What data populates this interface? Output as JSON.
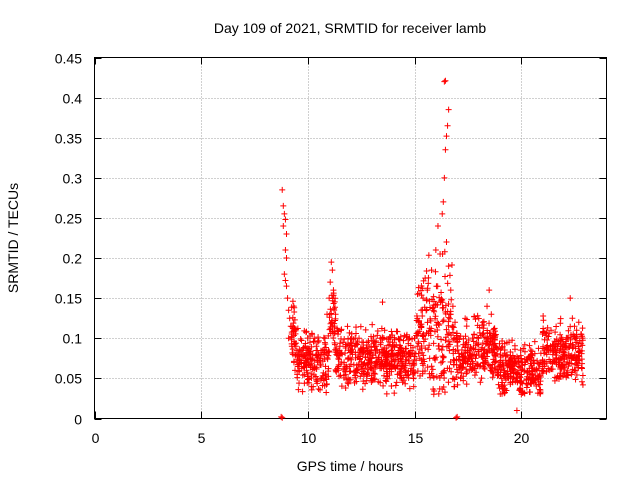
{
  "chart_data": {
    "type": "scatter",
    "title": "Day 109 of 2021, SRMTID for receiver lamb",
    "xlabel": "GPS time / hours",
    "ylabel": "SRMTID / TECUs",
    "xlim": [
      0,
      24
    ],
    "ylim": [
      0,
      0.45
    ],
    "xticks": [
      0,
      5,
      10,
      15,
      20
    ],
    "yticks": [
      0,
      0.05,
      0.1,
      0.15,
      0.2,
      0.25,
      0.3,
      0.35,
      0.4,
      0.45
    ],
    "xtick_labels": [
      "0",
      "5",
      "10",
      "15",
      "20"
    ],
    "ytick_labels": [
      "0",
      "0.05",
      "0.1",
      "0.15",
      "0.2",
      "0.25",
      "0.3",
      "0.35",
      "0.4",
      "0.45"
    ],
    "grid": true,
    "marker": "+",
    "color": "#ff0000",
    "series": [
      {
        "name": "SRMTID",
        "points": [
          [
            8.75,
            0.002
          ],
          [
            8.8,
            0.001
          ],
          [
            16.95,
            0.001
          ],
          [
            17.0,
            0.002
          ],
          [
            8.8,
            0.285
          ],
          [
            8.85,
            0.265
          ],
          [
            8.9,
            0.255
          ],
          [
            8.95,
            0.248
          ],
          [
            8.85,
            0.24
          ],
          [
            9.0,
            0.23
          ],
          [
            8.95,
            0.21
          ],
          [
            9.0,
            0.2
          ],
          [
            8.9,
            0.18
          ],
          [
            8.95,
            0.172
          ],
          [
            9.0,
            0.165
          ],
          [
            9.05,
            0.15
          ],
          [
            9.1,
            0.135
          ],
          [
            9.15,
            0.125
          ],
          [
            9.2,
            0.115
          ],
          [
            9.1,
            0.1
          ],
          [
            9.25,
            0.09
          ],
          [
            9.3,
            0.08
          ],
          [
            9.35,
            0.07
          ],
          [
            9.4,
            0.06
          ],
          [
            9.5,
            0.055
          ],
          [
            9.6,
            0.06
          ],
          [
            9.7,
            0.07
          ],
          [
            9.8,
            0.065
          ],
          [
            9.9,
            0.075
          ],
          [
            10.0,
            0.085
          ],
          [
            10.1,
            0.095
          ],
          [
            10.2,
            0.105
          ],
          [
            10.3,
            0.1
          ],
          [
            10.4,
            0.09
          ],
          [
            10.5,
            0.08
          ],
          [
            10.6,
            0.075
          ],
          [
            10.7,
            0.085
          ],
          [
            10.8,
            0.1
          ],
          [
            10.9,
            0.13
          ],
          [
            11.0,
            0.15
          ],
          [
            11.05,
            0.17
          ],
          [
            11.1,
            0.195
          ],
          [
            11.15,
            0.185
          ],
          [
            11.2,
            0.16
          ],
          [
            11.3,
            0.13
          ],
          [
            11.4,
            0.11
          ],
          [
            11.5,
            0.09
          ],
          [
            11.6,
            0.08
          ],
          [
            11.7,
            0.07
          ],
          [
            11.8,
            0.065
          ],
          [
            11.9,
            0.075
          ],
          [
            12.0,
            0.085
          ],
          [
            12.2,
            0.09
          ],
          [
            12.4,
            0.1
          ],
          [
            12.6,
            0.095
          ],
          [
            12.8,
            0.08
          ],
          [
            13.0,
            0.075
          ],
          [
            13.2,
            0.09
          ],
          [
            13.4,
            0.1
          ],
          [
            13.5,
            0.145
          ],
          [
            13.6,
            0.11
          ],
          [
            13.8,
            0.08
          ],
          [
            14.0,
            0.065
          ],
          [
            14.2,
            0.055
          ],
          [
            14.4,
            0.05
          ],
          [
            14.6,
            0.06
          ],
          [
            14.8,
            0.08
          ],
          [
            15.0,
            0.1
          ],
          [
            15.2,
            0.12
          ],
          [
            15.4,
            0.15
          ],
          [
            15.5,
            0.175
          ],
          [
            15.6,
            0.16
          ],
          [
            15.8,
            0.185
          ],
          [
            16.0,
            0.21
          ],
          [
            16.1,
            0.24
          ],
          [
            16.2,
            0.205
          ],
          [
            16.3,
            0.255
          ],
          [
            16.35,
            0.27
          ],
          [
            16.4,
            0.3
          ],
          [
            16.45,
            0.335
          ],
          [
            16.5,
            0.352
          ],
          [
            16.55,
            0.365
          ],
          [
            16.6,
            0.385
          ],
          [
            16.4,
            0.42
          ],
          [
            16.45,
            0.421
          ],
          [
            16.5,
            0.22
          ],
          [
            16.6,
            0.19
          ],
          [
            16.7,
            0.16
          ],
          [
            16.8,
            0.14
          ],
          [
            16.9,
            0.12
          ],
          [
            17.0,
            0.1
          ],
          [
            17.2,
            0.08
          ],
          [
            17.4,
            0.07
          ],
          [
            17.6,
            0.065
          ],
          [
            17.8,
            0.08
          ],
          [
            18.0,
            0.1
          ],
          [
            18.2,
            0.12
          ],
          [
            18.4,
            0.14
          ],
          [
            18.5,
            0.16
          ],
          [
            18.6,
            0.13
          ],
          [
            18.8,
            0.09
          ],
          [
            19.0,
            0.07
          ],
          [
            19.2,
            0.06
          ],
          [
            19.4,
            0.05
          ],
          [
            19.6,
            0.045
          ],
          [
            19.8,
            0.01
          ],
          [
            20.0,
            0.06
          ],
          [
            20.2,
            0.07
          ],
          [
            20.4,
            0.055
          ],
          [
            20.6,
            0.045
          ],
          [
            20.8,
            0.05
          ],
          [
            21.0,
            0.06
          ],
          [
            21.2,
            0.08
          ],
          [
            21.4,
            0.11
          ],
          [
            21.6,
            0.09
          ],
          [
            21.8,
            0.07
          ],
          [
            22.0,
            0.08
          ],
          [
            22.2,
            0.1
          ],
          [
            22.3,
            0.15
          ],
          [
            22.4,
            0.125
          ],
          [
            22.5,
            0.115
          ],
          [
            22.6,
            0.11
          ],
          [
            22.7,
            0.12
          ],
          [
            22.8,
            0.105
          ]
        ],
        "generated_background": {
          "description": "dense cloud between 9 and 23 hours",
          "x_range": [
            9.2,
            22.9
          ],
          "y_base_min": 0.04,
          "y_base_max": 0.11,
          "count": 1600
        }
      }
    ]
  }
}
